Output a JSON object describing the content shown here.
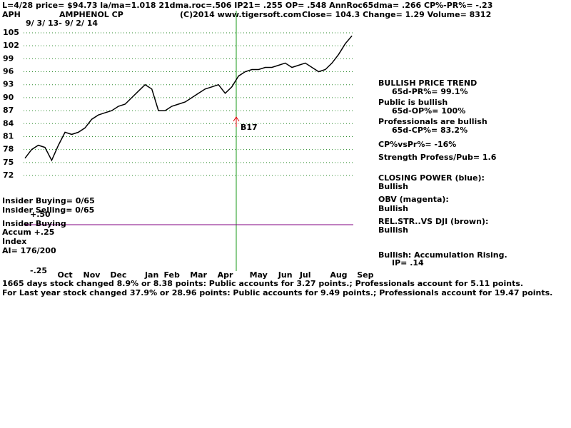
{
  "header": {
    "status": "L=4/28  price= $94.73  la/ma=1.018 21dma.roc=.506 IP21= .255 OP= .548 AnnRoc65dma= .266 CP%-PR%= -.23",
    "symbol": "APH",
    "company": "AMPHENOL CP",
    "copyright": "(C)2014 www.tigersoft.com",
    "quote": "Close= 104.3  Change= 1.29 Volume= 8312",
    "range": "9/ 3/ 13- 9/ 2/ 14"
  },
  "chart_data": {
    "type": "line",
    "color": "#000000",
    "grid": true,
    "annotation": "B17",
    "categories": [
      null,
      null,
      null,
      null,
      null,
      null,
      "Oct",
      null,
      null,
      null,
      "Nov",
      null,
      null,
      null,
      "Dec",
      null,
      null,
      null,
      null,
      "Jan",
      null,
      null,
      "Feb",
      null,
      null,
      null,
      "Mar",
      null,
      null,
      null,
      "Apr",
      null,
      null,
      null,
      null,
      "May",
      null,
      null,
      null,
      "Jun",
      null,
      null,
      "Jul",
      null,
      null,
      null,
      null,
      "Aug",
      null,
      null,
      null,
      "Sep"
    ],
    "values": [
      76,
      78,
      79,
      78.5,
      75.5,
      79,
      82,
      81.5,
      82,
      83,
      85,
      86,
      86.5,
      87,
      88,
      88.5,
      90,
      91.5,
      93,
      92,
      87,
      87,
      88,
      88.5,
      89,
      90,
      91,
      92,
      92.5,
      93,
      91,
      92.5,
      95,
      96,
      96.5,
      96.5,
      97,
      97,
      97.5,
      98,
      97,
      97.5,
      98,
      97,
      96,
      96.5,
      98,
      100,
      102.5,
      104.3,
      null,
      null
    ],
    "ylim": [
      72,
      105
    ],
    "yticks": [
      72,
      75,
      78,
      81,
      84,
      87,
      90,
      93,
      96,
      99,
      102,
      105
    ]
  },
  "panel": [
    "BULLISH PRICE TREND",
    "65d-PR%= 99.1%",
    "Public is bullish",
    "65d-OP%= 100%",
    "Professionals are bullish",
    "65d-CP%= 83.2%",
    "CP%vsPr%= -16%",
    "Strength Profess/Pub= 1.6",
    "CLOSING POWER (blue):",
    "Bullish",
    "OBV (magenta):",
    "Bullish",
    "REL.STR..VS DJI (brown):",
    "Bullish",
    "Bullish: Accumulation Rising.",
    "IP=  .14"
  ],
  "indicators": [
    "Insider Buying= 0/65",
    "Insider Selling= 0/65",
    "+.50",
    "Insider Buying",
    "Accum  +.25",
    "Index",
    "AI= 176/200",
    "-.25"
  ],
  "footer": [
    "1665 days stock changed  8.9% or  8.38 points:  Public accounts for  3.27 points.;  Professionals account for  5.11 points.",
    "For Last year stock changed  37.9% or  28.96 points:  Public accounts for  9.49 points.;  Professionals account for  19.47 points."
  ]
}
